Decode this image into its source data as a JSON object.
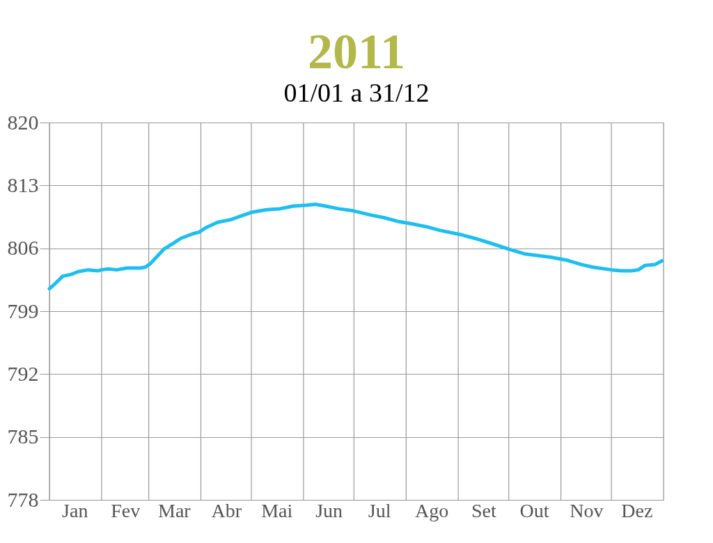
{
  "chart_data": {
    "type": "line",
    "title": "2011",
    "subtitle": "01/01 a 31/12",
    "x": [
      "2011-01-01",
      "2011-01-04",
      "2011-01-09",
      "2011-01-14",
      "2011-01-18",
      "2011-01-24",
      "2011-01-30",
      "2011-02-01",
      "2011-02-05",
      "2011-02-10",
      "2011-02-16",
      "2011-02-24",
      "2011-02-27",
      "2011-03-02",
      "2011-03-06",
      "2011-03-10",
      "2011-03-16",
      "2011-03-20",
      "2011-03-27",
      "2011-03-31",
      "2011-04-04",
      "2011-04-11",
      "2011-04-19",
      "2011-04-25",
      "2011-05-01",
      "2011-05-10",
      "2011-05-18",
      "2011-05-26",
      "2011-06-03",
      "2011-06-08",
      "2011-06-14",
      "2011-06-22",
      "2011-06-30",
      "2011-07-11",
      "2011-07-19",
      "2011-07-27",
      "2011-08-05",
      "2011-08-13",
      "2011-08-21",
      "2011-09-03",
      "2011-09-11",
      "2011-09-23",
      "2011-10-01",
      "2011-10-10",
      "2011-10-18",
      "2011-10-26",
      "2011-11-04",
      "2011-11-13",
      "2011-11-20",
      "2011-12-01",
      "2011-12-07",
      "2011-12-13",
      "2011-12-17",
      "2011-12-21",
      "2011-12-27",
      "2011-12-31"
    ],
    "series": [
      {
        "color": "#1ebff0",
        "values": [
          801.5,
          802.0,
          802.9,
          803.1,
          803.4,
          803.6,
          803.5,
          803.6,
          803.7,
          803.6,
          803.8,
          803.8,
          803.9,
          804.3,
          805.1,
          805.9,
          806.6,
          807.1,
          807.6,
          807.8,
          808.3,
          808.9,
          809.2,
          809.6,
          810.0,
          810.3,
          810.4,
          810.7,
          810.8,
          810.9,
          810.7,
          810.4,
          810.2,
          809.7,
          809.4,
          809.0,
          808.7,
          808.4,
          808.0,
          807.5,
          807.1,
          806.4,
          805.9,
          805.4,
          805.2,
          805.0,
          804.7,
          804.2,
          803.9,
          803.6,
          803.5,
          803.5,
          803.6,
          804.1,
          804.2,
          804.6
        ]
      }
    ],
    "xlim": [
      "2011-01-01",
      "2012-01-01"
    ],
    "xticks": [
      {
        "value": "2011-01-01",
        "label": null
      },
      {
        "value": "2011-01-16",
        "label": "Jan"
      },
      {
        "value": "2011-02-01",
        "label": null
      },
      {
        "value": "2011-02-15",
        "label": "Fev"
      },
      {
        "value": "2011-03-01",
        "label": null
      },
      {
        "value": "2011-03-16",
        "label": "Mar"
      },
      {
        "value": "2011-04-01",
        "label": null
      },
      {
        "value": "2011-04-16",
        "label": "Abr"
      },
      {
        "value": "2011-05-01",
        "label": null
      },
      {
        "value": "2011-05-16",
        "label": "Mai"
      },
      {
        "value": "2011-06-01",
        "label": null
      },
      {
        "value": "2011-06-16",
        "label": "Jun"
      },
      {
        "value": "2011-07-01",
        "label": null
      },
      {
        "value": "2011-07-16",
        "label": "Jul"
      },
      {
        "value": "2011-08-01",
        "label": null
      },
      {
        "value": "2011-08-16",
        "label": "Ago"
      },
      {
        "value": "2011-09-01",
        "label": null
      },
      {
        "value": "2011-09-16",
        "label": "Set"
      },
      {
        "value": "2011-10-01",
        "label": null
      },
      {
        "value": "2011-10-16",
        "label": "Out"
      },
      {
        "value": "2011-11-01",
        "label": null
      },
      {
        "value": "2011-11-16",
        "label": "Nov"
      },
      {
        "value": "2011-12-01",
        "label": null
      },
      {
        "value": "2011-12-16",
        "label": "Dez"
      },
      {
        "value": "2012-01-01",
        "label": null
      }
    ],
    "ylim": [
      778,
      820
    ],
    "yticks": [
      778,
      785,
      792,
      799,
      806,
      813,
      820
    ],
    "grid": true
  }
}
